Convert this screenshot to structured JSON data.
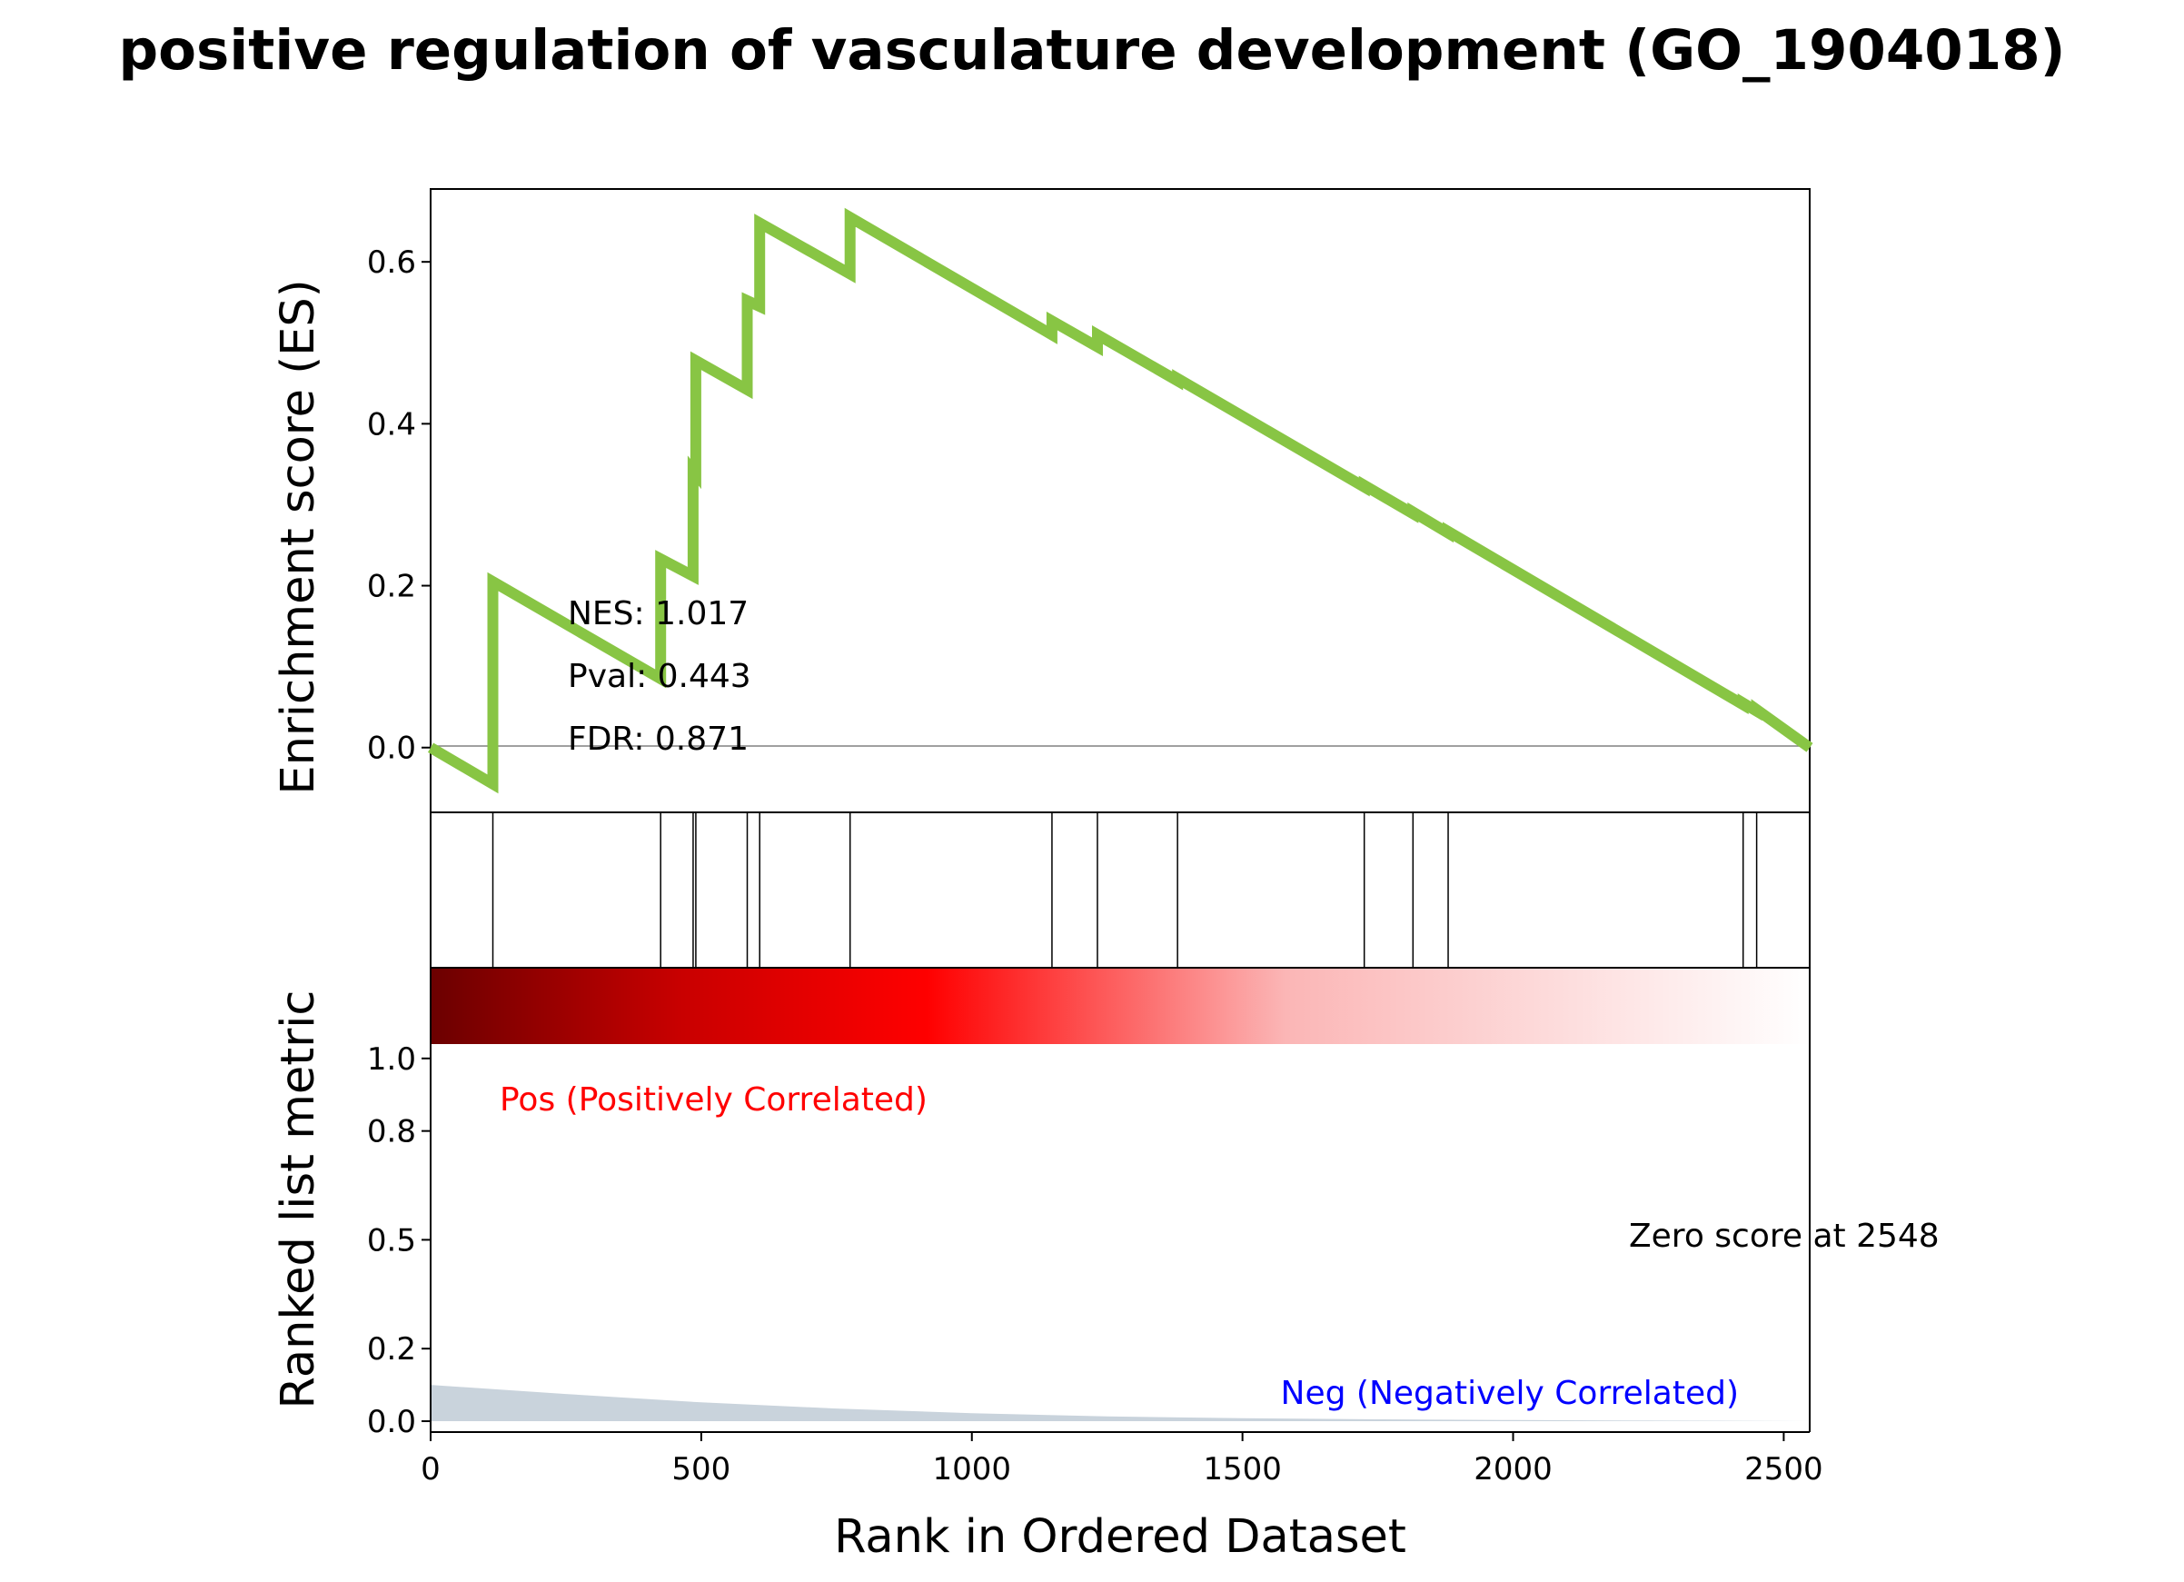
{
  "title": "positive regulation of vasculature development (GO_1904018)",
  "colors": {
    "es_line": "#88c544",
    "pos_text": "#ff0000",
    "neg_text": "#0000ff",
    "metric_fill": "#c9d3dc",
    "heat_dark": "#6b0000",
    "heat_mid": "#ff0000",
    "heat_light": "#ffffff"
  },
  "stats": {
    "nes": "NES: 1.017",
    "pval": "Pval: 0.443",
    "fdr": "FDR: 0.871"
  },
  "labels": {
    "pos": "Pos (Positively Correlated)",
    "neg": "Neg (Negatively Correlated)",
    "zero_score": "Zero score at 2548"
  },
  "chart_data": {
    "type": "line",
    "xlabel": "Rank in Ordered Dataset",
    "es_ylabel": "Enrichment score (ES)",
    "metric_ylabel": "Ranked list metric",
    "xlim": [
      0,
      2548
    ],
    "es_ylim": [
      -0.08,
      0.69
    ],
    "metric_ylim": [
      -0.03,
      1.25
    ],
    "x_ticks": [
      "0",
      "500",
      "1000",
      "1500",
      "2000",
      "2500"
    ],
    "es_ticks": [
      "0.0",
      "0.2",
      "0.4",
      "0.6"
    ],
    "metric_ticks": [
      "0.0",
      "0.2",
      "0.5",
      "0.8",
      "1.0"
    ],
    "hits": [
      115,
      425,
      485,
      490,
      585,
      608,
      775,
      1148,
      1232,
      1380,
      1725,
      1815,
      1880,
      2425,
      2450
    ],
    "es_curve": {
      "x": [
        0,
        115,
        115,
        425,
        425,
        485,
        485,
        490,
        490,
        585,
        585,
        608,
        608,
        775,
        775,
        1148,
        1148,
        1232,
        1232,
        1380,
        1380,
        1725,
        1725,
        1815,
        1815,
        1880,
        1880,
        2425,
        2425,
        2450,
        2450,
        2548
      ],
      "y": [
        0.0,
        -0.045,
        0.205,
        0.085,
        0.233,
        0.212,
        0.342,
        0.338,
        0.478,
        0.442,
        0.552,
        0.545,
        0.648,
        0.585,
        0.655,
        0.51,
        0.527,
        0.495,
        0.51,
        0.453,
        0.456,
        0.322,
        0.324,
        0.289,
        0.291,
        0.265,
        0.267,
        0.053,
        0.055,
        0.045,
        0.047,
        0.0
      ]
    },
    "ranked_metric": {
      "x": [
        0,
        250,
        500,
        750,
        1000,
        1250,
        1500,
        1750,
        2000,
        2548
      ],
      "y": [
        0.1,
        0.075,
        0.052,
        0.035,
        0.022,
        0.013,
        0.008,
        0.005,
        0.003,
        0.0
      ]
    },
    "zero_score_rank": 2548
  }
}
